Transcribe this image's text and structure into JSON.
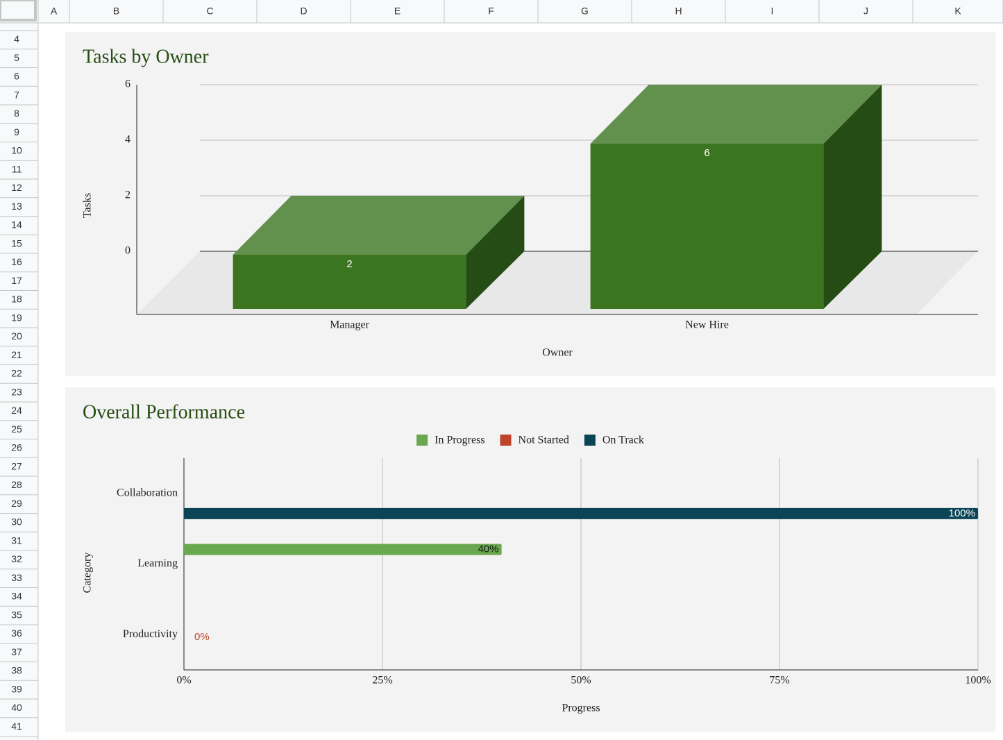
{
  "sheet": {
    "columns": [
      "A",
      "B",
      "C",
      "D",
      "E",
      "F",
      "G",
      "H",
      "I",
      "J",
      "K"
    ],
    "rows": [
      4,
      5,
      6,
      7,
      8,
      9,
      10,
      11,
      12,
      13,
      14,
      15,
      16,
      17,
      18,
      19,
      20,
      21,
      22,
      23,
      24,
      25,
      26,
      27,
      28,
      29,
      30,
      31,
      32,
      33,
      34,
      35,
      36,
      37,
      38,
      39,
      40,
      41
    ]
  },
  "chart_data": [
    {
      "type": "bar3d",
      "title": "Tasks by Owner",
      "x_label": "Owner",
      "y_label": "Tasks",
      "categories": [
        "Manager",
        "New Hire"
      ],
      "values": [
        2,
        6
      ],
      "color": "#3b7520",
      "ylim": [
        0,
        6
      ],
      "yticks": [
        0,
        2,
        4,
        6
      ],
      "grid": true
    },
    {
      "type": "hbar",
      "title": "Overall Performance",
      "x_label": "Progress",
      "y_label": "Category",
      "categories": [
        "Collaboration",
        "Learning",
        "Productivity"
      ],
      "series": [
        {
          "name": "In Progress",
          "color": "#6aa84f",
          "values": [
            null,
            40,
            null
          ],
          "value_labels": [
            null,
            "40%",
            null
          ]
        },
        {
          "name": "Not Started",
          "color": "#c0432b",
          "values": [
            null,
            null,
            0
          ],
          "value_labels": [
            null,
            null,
            "0%"
          ]
        },
        {
          "name": "On Track",
          "color": "#0b4555",
          "values": [
            100,
            null,
            null
          ],
          "value_labels": [
            "100%",
            null,
            null
          ]
        }
      ],
      "xlim": [
        0,
        100
      ],
      "xticks": [
        {
          "value": 0,
          "label": "0%"
        },
        {
          "value": 25,
          "label": "25%"
        },
        {
          "value": 50,
          "label": "50%"
        },
        {
          "value": 75,
          "label": "75%"
        },
        {
          "value": 100,
          "label": "100%"
        }
      ],
      "grid": true,
      "legend": "top"
    }
  ]
}
